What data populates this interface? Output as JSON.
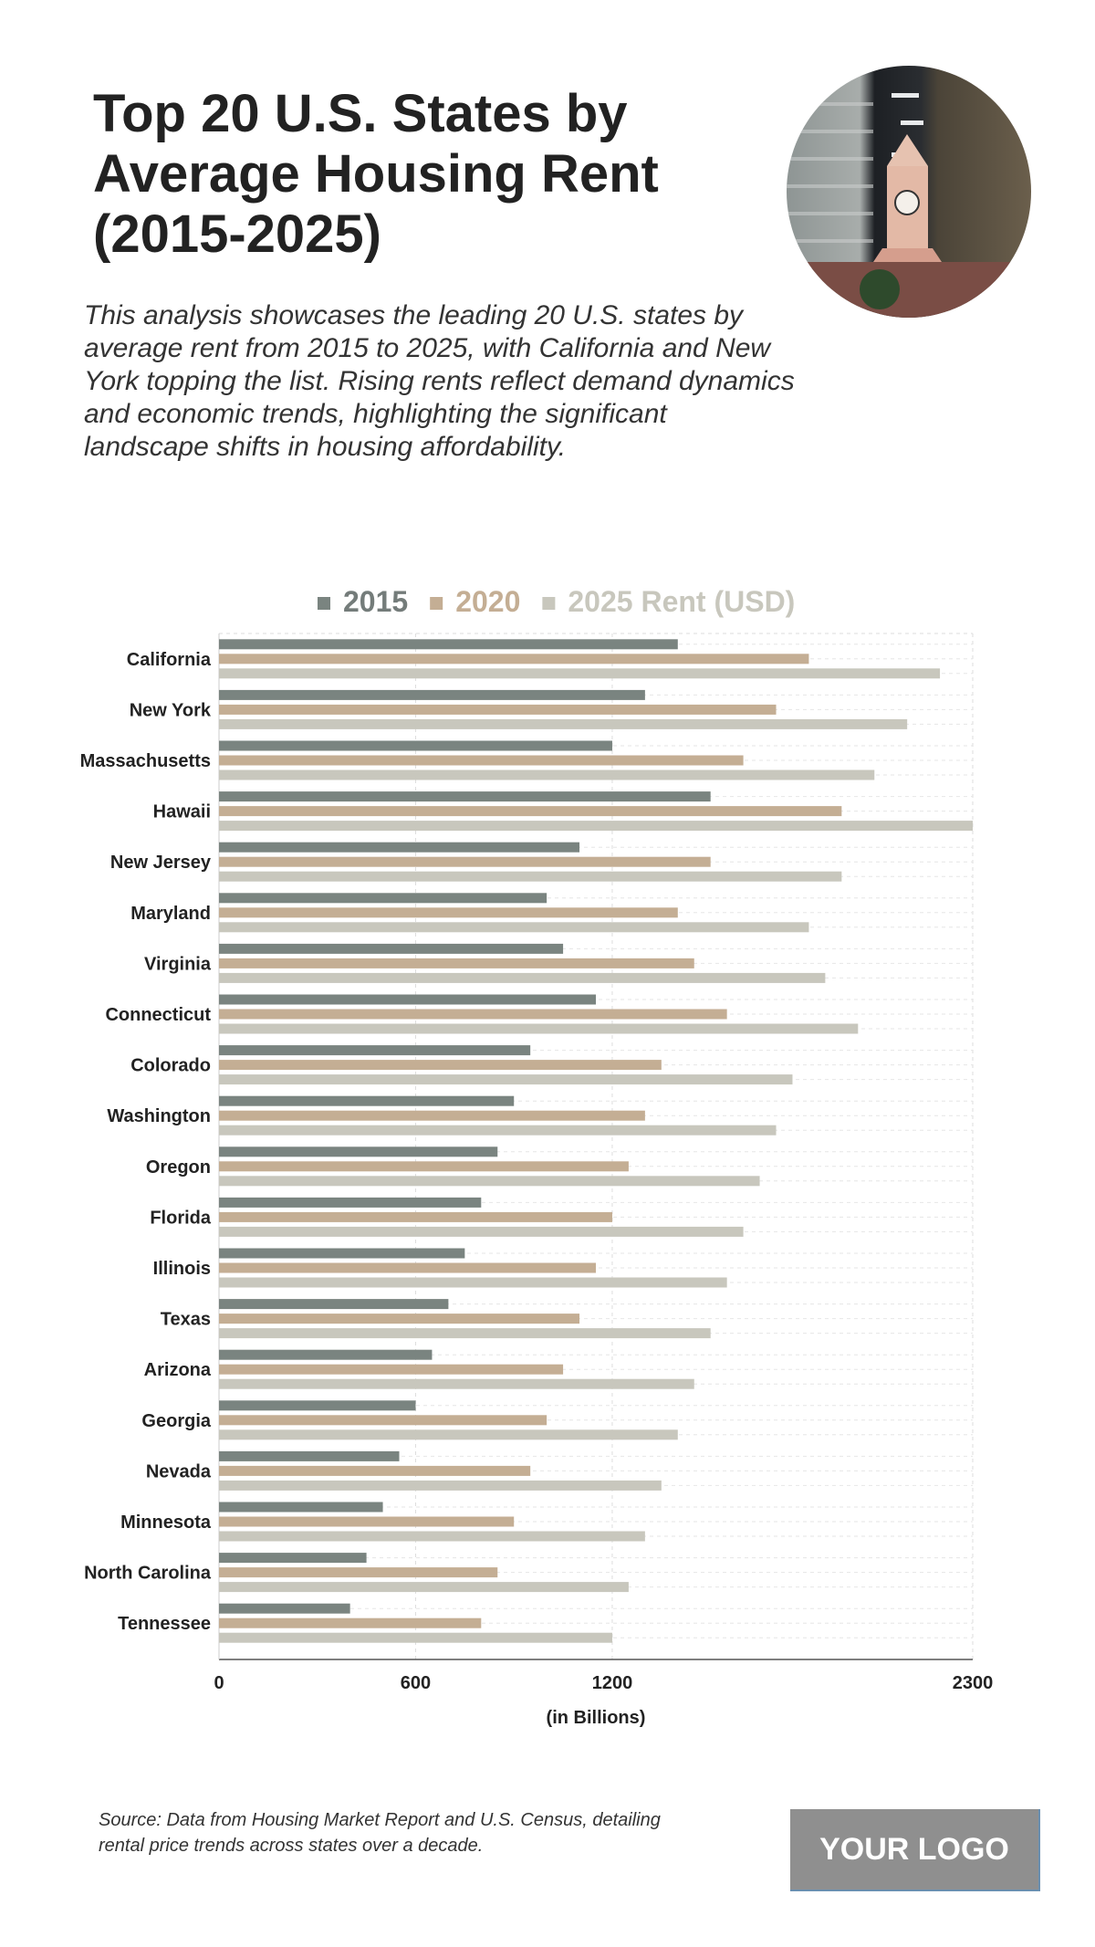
{
  "header": {
    "title": "Top 20 U.S. States by Average Housing Rent (2015-2025)",
    "subtitle": "This analysis showcases the leading 20 U.S. states by average rent from 2015 to 2025, with California and New York topping the list. Rising rents reflect demand dynamics and economic trends, highlighting the significant landscape shifts in housing affordability."
  },
  "footer": {
    "source": "Source: Data from Housing Market Report and U.S. Census, detailing rental price trends across states over a decade.",
    "logo": "YOUR LOGO"
  },
  "chart_data": {
    "type": "bar",
    "orientation": "horizontal",
    "categories": [
      "California",
      "New York",
      "Massachusetts",
      "Hawaii",
      "New Jersey",
      "Maryland",
      "Virginia",
      "Connecticut",
      "Colorado",
      "Washington",
      "Oregon",
      "Florida",
      "Illinois",
      "Texas",
      "Arizona",
      "Georgia",
      "Nevada",
      "Minnesota",
      "North Carolina",
      "Tennessee"
    ],
    "series": [
      {
        "name": "2015",
        "color": "#7a8480",
        "values": [
          1400,
          1300,
          1200,
          1500,
          1100,
          1000,
          1050,
          1150,
          950,
          900,
          850,
          800,
          750,
          700,
          650,
          600,
          550,
          500,
          450,
          400
        ]
      },
      {
        "name": "2020",
        "color": "#c4ae94",
        "values": [
          1800,
          1700,
          1600,
          1900,
          1500,
          1400,
          1450,
          1550,
          1350,
          1300,
          1250,
          1200,
          1150,
          1100,
          1050,
          1000,
          950,
          900,
          850,
          800
        ]
      },
      {
        "name": "2025 Rent (USD)",
        "color": "#c8c7bd",
        "values": [
          2200,
          2100,
          2000,
          2300,
          1900,
          1800,
          1850,
          1950,
          1750,
          1700,
          1650,
          1600,
          1550,
          1500,
          1450,
          1400,
          1350,
          1300,
          1250,
          1200
        ]
      }
    ],
    "xlabel": "(in Billions)",
    "xlim": [
      0,
      2300
    ],
    "xticks": [
      "0",
      "600",
      "1200",
      "2300"
    ],
    "grid": true,
    "legend": "top"
  }
}
